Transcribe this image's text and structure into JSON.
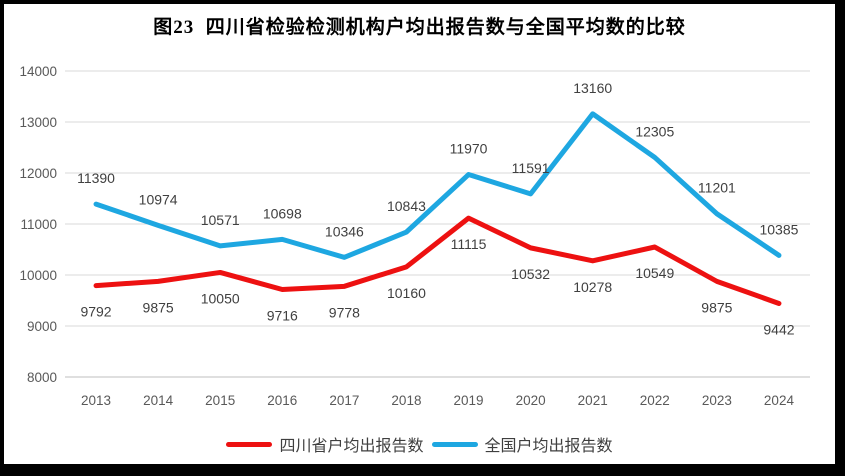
{
  "title": "图23  四川省检验检测机构户均出报告数与全国平均数的比较",
  "chart_data": {
    "type": "line",
    "title": "图23  四川省检验检测机构户均出报告数与全国平均数的比较",
    "categories": [
      "2013",
      "2014",
      "2015",
      "2016",
      "2017",
      "2018",
      "2019",
      "2020",
      "2021",
      "2022",
      "2023",
      "2024"
    ],
    "series": [
      {
        "name": "四川省户均出报告数",
        "color": "#ED1111",
        "label_position": "below",
        "values": [
          9792,
          9875,
          10050,
          9716,
          9778,
          10160,
          11115,
          10532,
          10278,
          10549,
          9875,
          9442
        ]
      },
      {
        "name": "全国户均出报告数",
        "color": "#1EA7E1",
        "label_position": "above",
        "values": [
          11390,
          10974,
          10571,
          10698,
          10346,
          10843,
          11970,
          11591,
          13160,
          12305,
          11201,
          10385
        ]
      }
    ],
    "xlabel": "",
    "ylabel": "",
    "ylim": [
      8000,
      14000
    ],
    "yticks": [
      8000,
      9000,
      10000,
      11000,
      12000,
      13000,
      14000
    ],
    "grid": "horizontal",
    "data_labels": true,
    "legend_position": "bottom"
  },
  "colors": {
    "frame_background": "#000000",
    "card_background": "#ffffff",
    "gridline": "#d9d9d9",
    "axis_line": "#bfbfbf",
    "tick_label": "#595959",
    "data_label": "#404040",
    "title_text": "#000000",
    "legend_text": "#3f3f3f"
  }
}
